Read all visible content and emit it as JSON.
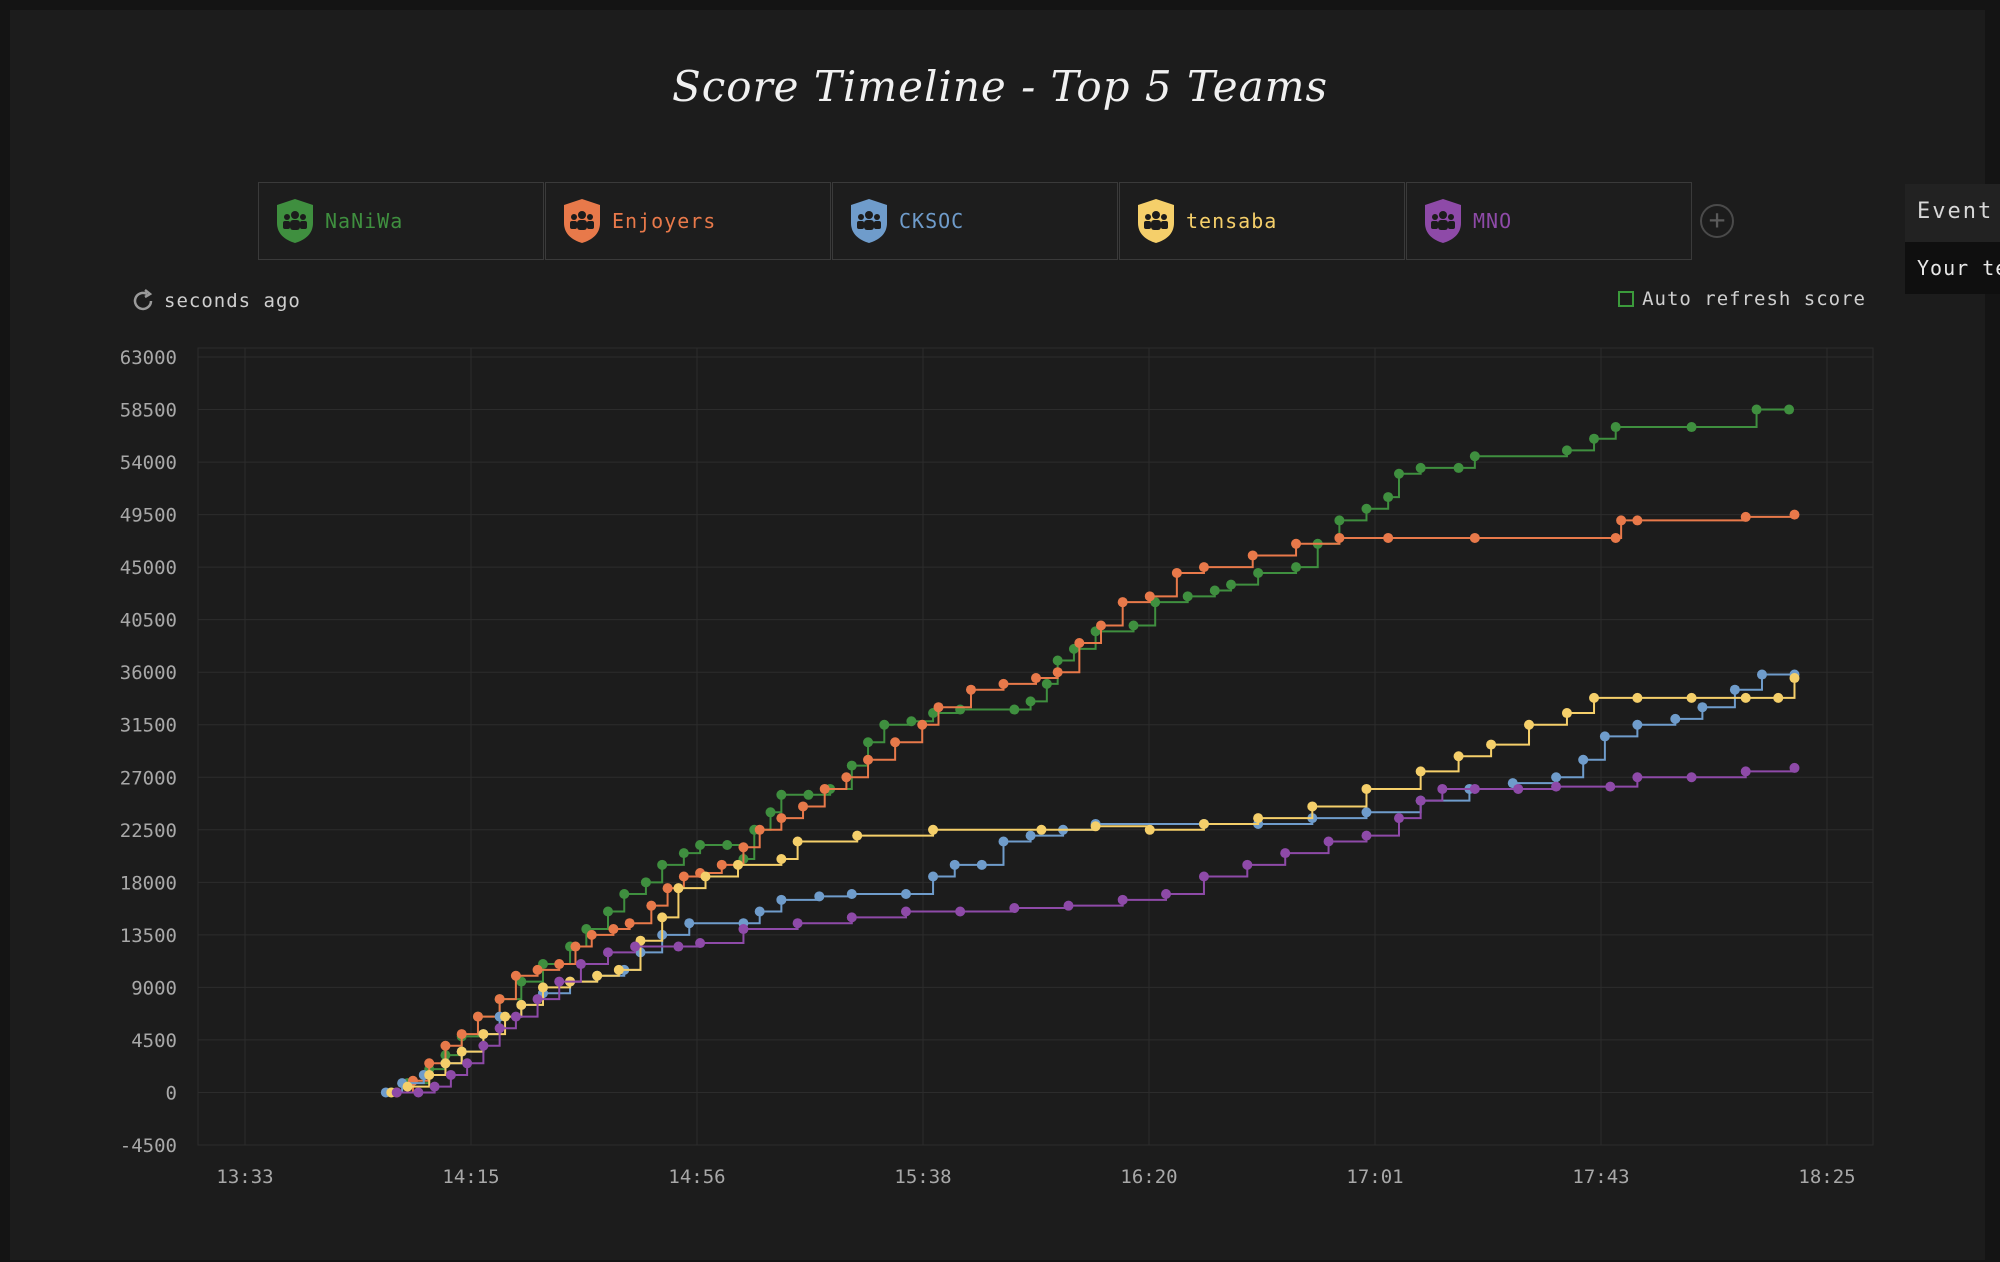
{
  "title": "Score Timeline - Top 5 Teams",
  "legend": [
    {
      "name": "NaNiWa",
      "color": "#3f8f3f"
    },
    {
      "name": "Enjoyers",
      "color": "#e8794a"
    },
    {
      "name": "CKSOC",
      "color": "#6f9ccb"
    },
    {
      "name": "tensaba",
      "color": "#f5cf6a"
    },
    {
      "name": "MNO",
      "color": "#8e4aa8"
    }
  ],
  "refresh_text": "seconds ago",
  "auto_refresh_label": "Auto refresh score",
  "side_panel": {
    "event_label": "Event",
    "team_label": "Your te"
  },
  "chart_data": {
    "type": "line",
    "title": "Score Timeline - Top 5 Teams",
    "x_ticks": [
      "13:33",
      "14:15",
      "14:56",
      "15:38",
      "16:20",
      "17:01",
      "17:43",
      "18:25"
    ],
    "x_range_minutes": [
      813,
      1105
    ],
    "y_ticks": [
      63000,
      58500,
      54000,
      49500,
      45000,
      40500,
      36000,
      31500,
      27000,
      22500,
      18000,
      13500,
      9000,
      4500,
      0,
      -4500
    ],
    "ylim": [
      -4500,
      63000
    ],
    "x_unit": "minutes since midnight",
    "series": [
      {
        "name": "NaNiWa",
        "color": "#3f8f3f",
        "points": [
          [
            840,
            0
          ],
          [
            843,
            800
          ],
          [
            847,
            2000
          ],
          [
            850,
            3200
          ],
          [
            853,
            4800
          ],
          [
            856,
            6500
          ],
          [
            860,
            8000
          ],
          [
            864,
            9500
          ],
          [
            868,
            11000
          ],
          [
            873,
            12500
          ],
          [
            876,
            14000
          ],
          [
            880,
            15500
          ],
          [
            883,
            17000
          ],
          [
            887,
            18000
          ],
          [
            890,
            19500
          ],
          [
            894,
            20500
          ],
          [
            897,
            21200
          ],
          [
            902,
            21200
          ],
          [
            905,
            20000
          ],
          [
            907,
            22500
          ],
          [
            910,
            24000
          ],
          [
            912,
            25500
          ],
          [
            917,
            25500
          ],
          [
            921,
            26000
          ],
          [
            925,
            28000
          ],
          [
            928,
            30000
          ],
          [
            931,
            31500
          ],
          [
            936,
            31800
          ],
          [
            940,
            32500
          ],
          [
            945,
            32800
          ],
          [
            955,
            32800
          ],
          [
            958,
            33500
          ],
          [
            961,
            35000
          ],
          [
            963,
            37000
          ],
          [
            966,
            38000
          ],
          [
            970,
            39500
          ],
          [
            977,
            40000
          ],
          [
            981,
            42000
          ],
          [
            987,
            42500
          ],
          [
            992,
            43000
          ],
          [
            995,
            43500
          ],
          [
            1000,
            44500
          ],
          [
            1007,
            45000
          ],
          [
            1011,
            47000
          ],
          [
            1015,
            49000
          ],
          [
            1020,
            50000
          ],
          [
            1024,
            51000
          ],
          [
            1026,
            53000
          ],
          [
            1030,
            53500
          ],
          [
            1037,
            53500
          ],
          [
            1040,
            54500
          ],
          [
            1057,
            55000
          ],
          [
            1062,
            56000
          ],
          [
            1066,
            57000
          ],
          [
            1080,
            57000
          ],
          [
            1092,
            58500
          ],
          [
            1098,
            58500
          ]
        ]
      },
      {
        "name": "Enjoyers",
        "color": "#e8794a",
        "points": [
          [
            841,
            0
          ],
          [
            844,
            1000
          ],
          [
            847,
            2500
          ],
          [
            850,
            4000
          ],
          [
            853,
            5000
          ],
          [
            856,
            6500
          ],
          [
            860,
            8000
          ],
          [
            863,
            10000
          ],
          [
            867,
            10500
          ],
          [
            871,
            11000
          ],
          [
            874,
            12500
          ],
          [
            877,
            13500
          ],
          [
            881,
            14000
          ],
          [
            884,
            14500
          ],
          [
            888,
            16000
          ],
          [
            891,
            17500
          ],
          [
            894,
            18500
          ],
          [
            897,
            18800
          ],
          [
            901,
            19500
          ],
          [
            905,
            21000
          ],
          [
            908,
            22500
          ],
          [
            912,
            23500
          ],
          [
            916,
            24500
          ],
          [
            920,
            26000
          ],
          [
            924,
            27000
          ],
          [
            928,
            28500
          ],
          [
            933,
            30000
          ],
          [
            938,
            31500
          ],
          [
            941,
            33000
          ],
          [
            947,
            34500
          ],
          [
            953,
            35000
          ],
          [
            959,
            35500
          ],
          [
            963,
            36000
          ],
          [
            967,
            38500
          ],
          [
            971,
            40000
          ],
          [
            975,
            42000
          ],
          [
            980,
            42500
          ],
          [
            985,
            44500
          ],
          [
            990,
            45000
          ],
          [
            999,
            46000
          ],
          [
            1007,
            47000
          ],
          [
            1015,
            47500
          ],
          [
            1024,
            47500
          ],
          [
            1040,
            47500
          ],
          [
            1066,
            47500
          ],
          [
            1067,
            49000
          ],
          [
            1070,
            49000
          ],
          [
            1090,
            49300
          ],
          [
            1099,
            49500
          ]
        ]
      },
      {
        "name": "CKSOC",
        "color": "#6f9ccb",
        "points": [
          [
            839,
            0
          ],
          [
            842,
            800
          ],
          [
            846,
            1500
          ],
          [
            850,
            2500
          ],
          [
            853,
            3500
          ],
          [
            857,
            5000
          ],
          [
            860,
            6500
          ],
          [
            864,
            7500
          ],
          [
            868,
            8500
          ],
          [
            873,
            9500
          ],
          [
            878,
            10000
          ],
          [
            883,
            10500
          ],
          [
            886,
            12000
          ],
          [
            890,
            13500
          ],
          [
            895,
            14500
          ],
          [
            905,
            14500
          ],
          [
            908,
            15500
          ],
          [
            912,
            16500
          ],
          [
            919,
            16800
          ],
          [
            925,
            17000
          ],
          [
            935,
            17000
          ],
          [
            940,
            18500
          ],
          [
            944,
            19500
          ],
          [
            949,
            19500
          ],
          [
            953,
            21500
          ],
          [
            958,
            22000
          ],
          [
            964,
            22500
          ],
          [
            970,
            23000
          ],
          [
            990,
            23000
          ],
          [
            1000,
            23000
          ],
          [
            1010,
            23500
          ],
          [
            1020,
            24000
          ],
          [
            1030,
            25000
          ],
          [
            1039,
            26000
          ],
          [
            1047,
            26500
          ],
          [
            1055,
            27000
          ],
          [
            1060,
            28500
          ],
          [
            1064,
            30500
          ],
          [
            1070,
            31500
          ],
          [
            1077,
            32000
          ],
          [
            1082,
            33000
          ],
          [
            1088,
            34500
          ],
          [
            1093,
            35800
          ],
          [
            1099,
            35800
          ]
        ]
      },
      {
        "name": "tensaba",
        "color": "#f5cf6a",
        "points": [
          [
            840,
            0
          ],
          [
            843,
            500
          ],
          [
            847,
            1500
          ],
          [
            850,
            2500
          ],
          [
            853,
            3500
          ],
          [
            857,
            5000
          ],
          [
            861,
            6500
          ],
          [
            864,
            7500
          ],
          [
            868,
            9000
          ],
          [
            873,
            9500
          ],
          [
            878,
            10000
          ],
          [
            882,
            10500
          ],
          [
            886,
            13000
          ],
          [
            890,
            15000
          ],
          [
            893,
            17500
          ],
          [
            898,
            18500
          ],
          [
            904,
            19500
          ],
          [
            912,
            20000
          ],
          [
            915,
            21500
          ],
          [
            926,
            22000
          ],
          [
            940,
            22500
          ],
          [
            960,
            22500
          ],
          [
            970,
            22800
          ],
          [
            980,
            22500
          ],
          [
            990,
            23000
          ],
          [
            1000,
            23500
          ],
          [
            1010,
            24500
          ],
          [
            1020,
            26000
          ],
          [
            1030,
            27500
          ],
          [
            1037,
            28800
          ],
          [
            1043,
            29800
          ],
          [
            1050,
            31500
          ],
          [
            1057,
            32500
          ],
          [
            1062,
            33800
          ],
          [
            1070,
            33800
          ],
          [
            1080,
            33800
          ],
          [
            1090,
            33800
          ],
          [
            1096,
            33800
          ],
          [
            1099,
            35500
          ]
        ]
      },
      {
        "name": "MNO",
        "color": "#8e4aa8",
        "points": [
          [
            841,
            0
          ],
          [
            845,
            0
          ],
          [
            848,
            500
          ],
          [
            851,
            1500
          ],
          [
            854,
            2500
          ],
          [
            857,
            4000
          ],
          [
            860,
            5500
          ],
          [
            863,
            6500
          ],
          [
            867,
            8000
          ],
          [
            871,
            9500
          ],
          [
            875,
            11000
          ],
          [
            880,
            12000
          ],
          [
            885,
            12500
          ],
          [
            893,
            12500
          ],
          [
            897,
            12800
          ],
          [
            905,
            14000
          ],
          [
            915,
            14500
          ],
          [
            925,
            15000
          ],
          [
            935,
            15500
          ],
          [
            945,
            15500
          ],
          [
            955,
            15800
          ],
          [
            965,
            16000
          ],
          [
            975,
            16500
          ],
          [
            983,
            17000
          ],
          [
            990,
            18500
          ],
          [
            998,
            19500
          ],
          [
            1005,
            20500
          ],
          [
            1013,
            21500
          ],
          [
            1020,
            22000
          ],
          [
            1026,
            23500
          ],
          [
            1030,
            25000
          ],
          [
            1034,
            26000
          ],
          [
            1040,
            26000
          ],
          [
            1048,
            26000
          ],
          [
            1055,
            26200
          ],
          [
            1065,
            26200
          ],
          [
            1070,
            27000
          ],
          [
            1080,
            27000
          ],
          [
            1090,
            27500
          ],
          [
            1099,
            27800
          ]
        ]
      }
    ]
  }
}
